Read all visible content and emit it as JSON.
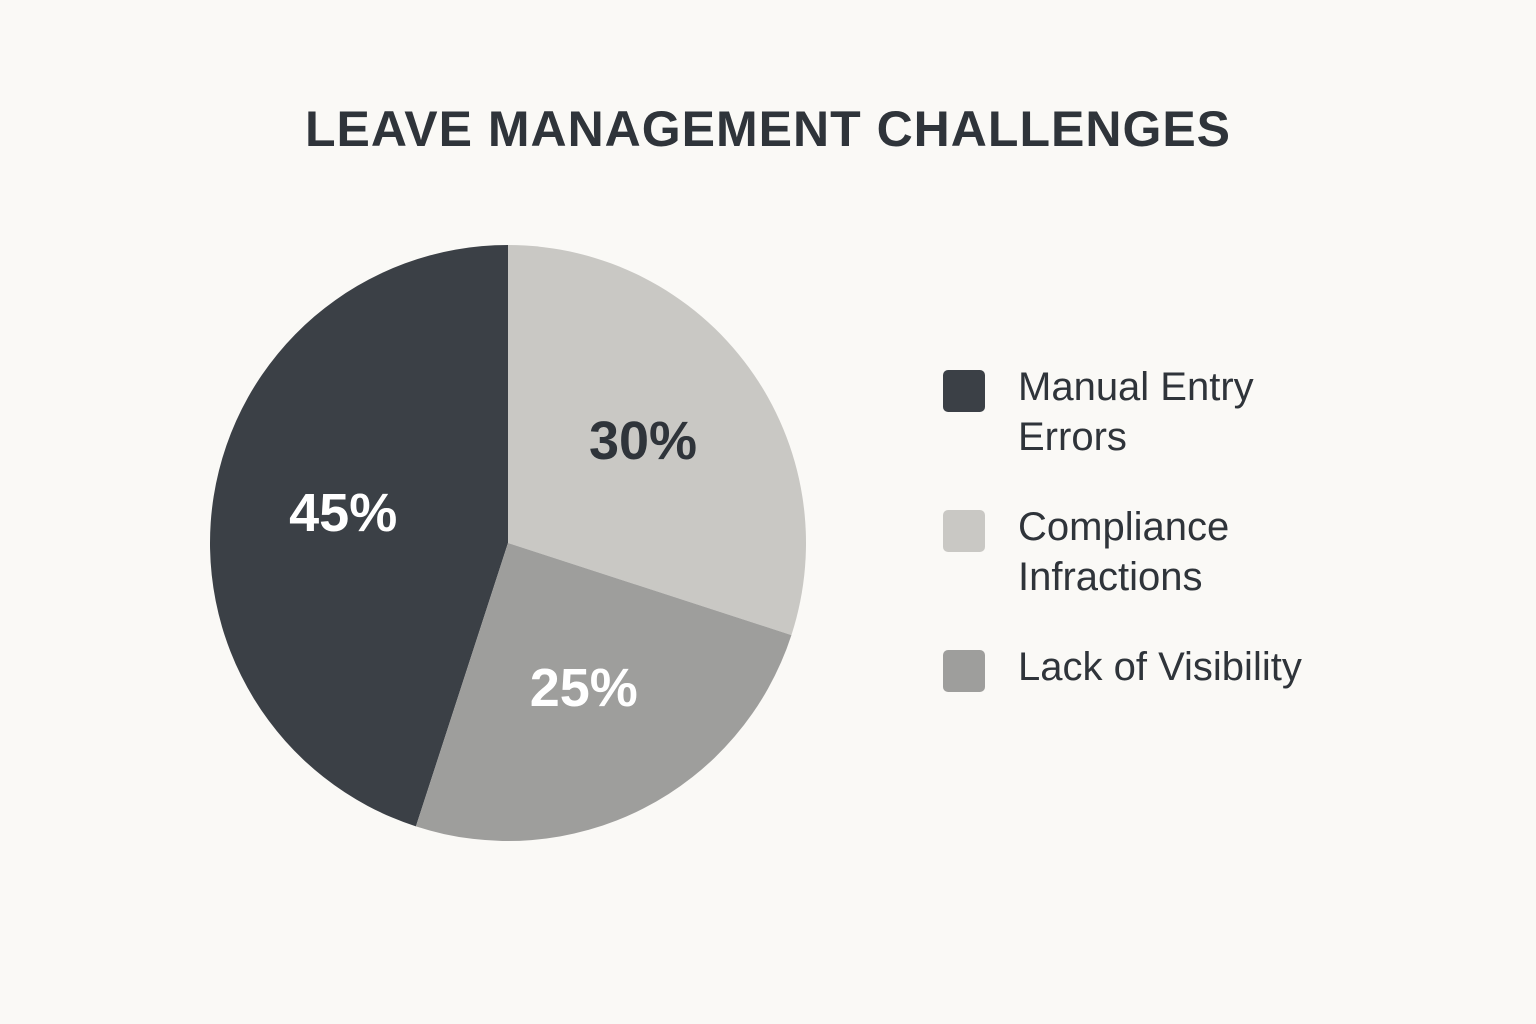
{
  "chart_data": {
    "type": "pie",
    "title": "LEAVE MANAGEMENT CHALLENGES",
    "categories": [
      "Manual Entry Errors",
      "Compliance Infractions",
      "Lack of Visibility"
    ],
    "values": [
      45,
      30,
      25
    ],
    "value_labels": [
      "45%",
      "30%",
      "25%"
    ],
    "colors": [
      "#3b4046",
      "#c9c8c4",
      "#9e9e9c"
    ],
    "label_colors": [
      "#ffffff",
      "#2f343a",
      "#ffffff"
    ]
  }
}
